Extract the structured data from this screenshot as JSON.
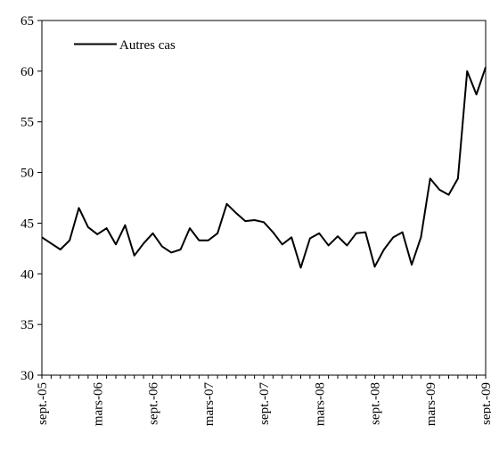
{
  "chart_data": {
    "type": "line",
    "title": "",
    "xlabel": "",
    "ylabel": "",
    "ylim": [
      30,
      65
    ],
    "y_ticks": [
      30,
      35,
      40,
      45,
      50,
      55,
      60,
      65
    ],
    "x_ticks": [
      "sept.-05",
      "mars-06",
      "sept.-06",
      "mars-07",
      "sept.-07",
      "mars-08",
      "sept.-08",
      "mars-09",
      "sept.-09"
    ],
    "x_tick_every": 6,
    "grid": false,
    "legend_position": "top-left",
    "line_color": "#000000",
    "series": [
      {
        "name": "Autres cas",
        "values": [
          43.6,
          43.0,
          42.4,
          43.3,
          46.5,
          44.6,
          43.9,
          44.5,
          42.9,
          44.8,
          41.8,
          43.0,
          44.0,
          42.7,
          42.1,
          42.4,
          44.5,
          43.3,
          43.3,
          44.0,
          46.9,
          46.0,
          45.2,
          45.3,
          45.1,
          44.1,
          42.9,
          43.6,
          40.6,
          43.5,
          44.0,
          42.8,
          43.7,
          42.8,
          44.0,
          44.1,
          40.7,
          42.4,
          43.6,
          44.1,
          40.9,
          43.6,
          49.4,
          48.3,
          47.8,
          49.4,
          60.0,
          57.7,
          60.4
        ]
      }
    ]
  }
}
